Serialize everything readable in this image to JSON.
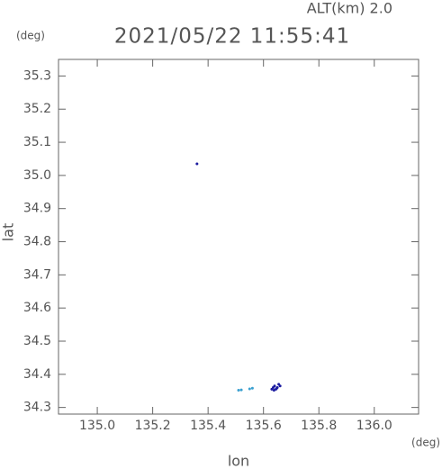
{
  "chart_data": {
    "type": "scatter",
    "title": "2021/05/22 11:55:41",
    "annotation": "ALT(km) 2.0",
    "y_unit": "(deg)",
    "x_unit": "(deg)",
    "x_label": "lon",
    "y_label": "lat",
    "xlim": [
      134.86,
      136.16
    ],
    "ylim": [
      34.28,
      35.35
    ],
    "xticks": [
      {
        "value": 135.0,
        "label": "135.0"
      },
      135.2,
      135.4,
      135.6,
      135.8,
      {
        "value": 136.0,
        "label": "136.0"
      }
    ],
    "yticks": [
      34.3,
      34.4,
      34.5,
      34.6,
      34.7,
      34.8,
      34.9,
      {
        "value": 35.0,
        "label": "35.0"
      },
      35.1,
      35.2,
      35.3
    ],
    "series": [
      {
        "color": "#1c1ca0",
        "x": [
          135.36,
          135.63,
          135.635,
          135.64,
          135.645,
          135.65,
          135.655,
          135.66,
          135.638,
          135.648
        ],
        "y": [
          35.035,
          34.355,
          34.36,
          34.365,
          34.355,
          34.36,
          34.37,
          34.365,
          34.352,
          34.358
        ]
      },
      {
        "color": "#3aa0d0",
        "x": [
          135.51,
          135.52,
          135.55,
          135.56
        ],
        "y": [
          34.352,
          34.353,
          34.356,
          34.358
        ]
      }
    ]
  }
}
